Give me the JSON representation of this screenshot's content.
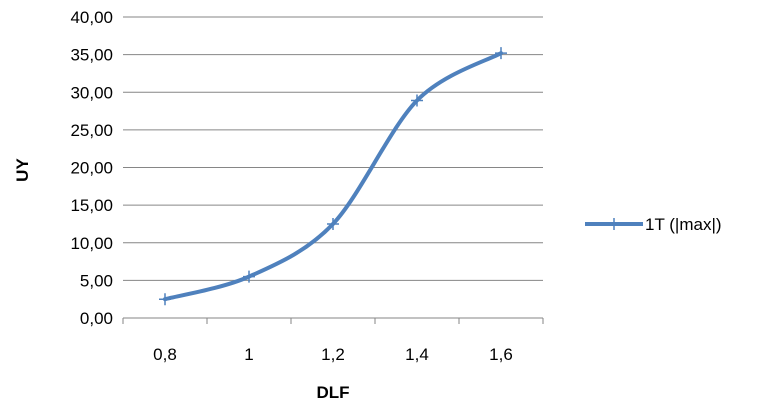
{
  "chart_data": {
    "type": "line",
    "title": "",
    "xlabel": "DLF",
    "ylabel": "UY",
    "x": [
      "0,8",
      "1",
      "1,2",
      "1,4",
      "1,6"
    ],
    "x_values": [
      0.8,
      1.0,
      1.2,
      1.4,
      1.6
    ],
    "y_ticks": [
      "0,00",
      "5,00",
      "10,00",
      "15,00",
      "20,00",
      "25,00",
      "30,00",
      "35,00",
      "40,00"
    ],
    "ylim": [
      0,
      40
    ],
    "grid": "horizontal",
    "legend_position": "right",
    "series": [
      {
        "name": "1T (|max|)",
        "values": [
          2.5,
          5.5,
          12.5,
          28.9,
          35.2
        ],
        "color": "#4F81BD",
        "marker": "plus",
        "smooth": true
      }
    ]
  }
}
